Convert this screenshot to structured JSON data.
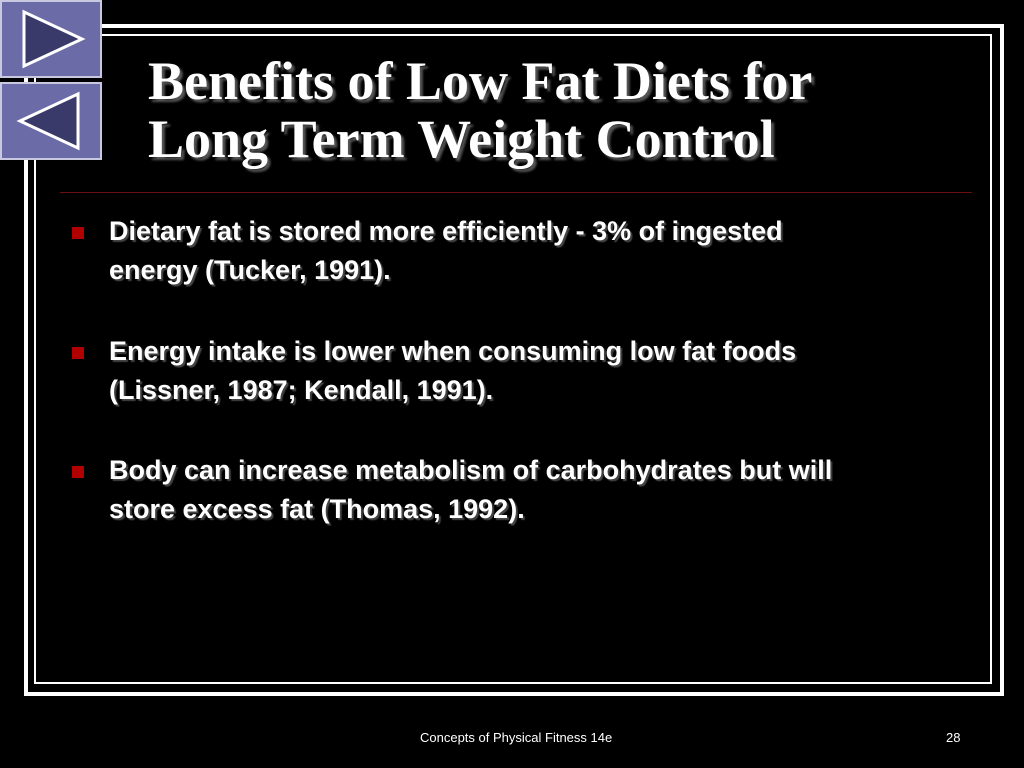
{
  "title_lines": [
    "Benefits of Low Fat Diets for",
    "Long Term Weight Control"
  ],
  "bullets": [
    [
      "Dietary fat is stored more efficiently - 3% of ingested",
      "energy (Tucker, 1991)."
    ],
    [
      "Energy intake is lower when consuming low fat foods",
      "(Lissner, 1987; Kendall, 1991)."
    ],
    [
      "Body can increase metabolism of carbohydrates but will",
      "store excess fat (Thomas, 1992)."
    ]
  ],
  "footer": {
    "text": "Concepts of Physical Fitness 14e",
    "page": "28"
  }
}
